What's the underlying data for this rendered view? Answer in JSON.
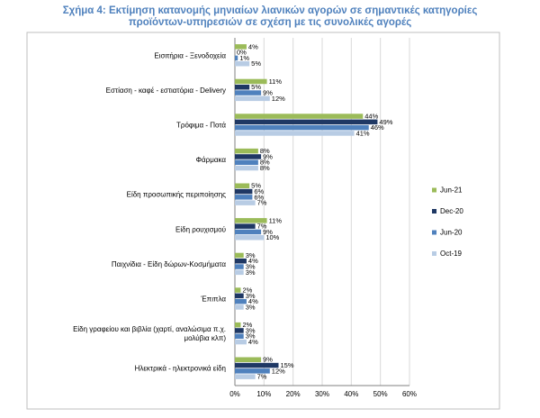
{
  "chart_data": {
    "type": "bar",
    "orientation": "horizontal",
    "title_lines": [
      "Σχήμα 4: Εκτίμηση κατανομής μηνιαίων λιανικών αγορών σε σημαντικές κατηγορίες",
      "προϊόντων-υπηρεσιών σε σχέση με τις συνολικές αγορές"
    ],
    "categories": [
      [
        "Εισιτήρια - Ξενοδοχεία"
      ],
      [
        "Εστίαση - καφέ - εστιατόρια - Delivery"
      ],
      [
        "Τρόφιμα - Ποτά"
      ],
      [
        "Φάρμακα"
      ],
      [
        "Είδη προσωπικής περιποίησης"
      ],
      [
        "Είδη ρουχισμού"
      ],
      [
        "Παιχνίδια - Είδη δώρων-Κοσμήματα"
      ],
      [
        "Έπιπλα"
      ],
      [
        "Είδη γραφείου και βιβλία (χαρτί, αναλώσιμα π.χ.",
        "μολύβια κλπ)"
      ],
      [
        "Ηλεκτρικά - ηλεκτρονικά είδη"
      ]
    ],
    "series": [
      {
        "name": "Jun-21",
        "color": "#9bbb59",
        "values": [
          4,
          11,
          44,
          8,
          5,
          11,
          3,
          2,
          2,
          9
        ]
      },
      {
        "name": "Dec-20",
        "color": "#1f3864",
        "values": [
          0,
          5,
          49,
          9,
          6,
          7,
          4,
          3,
          3,
          15
        ]
      },
      {
        "name": "Jun-20",
        "color": "#4f81bd",
        "values": [
          1,
          9,
          46,
          8,
          6,
          9,
          3,
          4,
          3,
          12
        ]
      },
      {
        "name": "Oct-19",
        "color": "#b8cce4",
        "values": [
          5,
          12,
          41,
          8,
          7,
          10,
          3,
          3,
          4,
          7
        ]
      }
    ],
    "xlim": [
      0,
      60
    ],
    "xticks": [
      0,
      10,
      20,
      30,
      40,
      50,
      60
    ],
    "tick_suffix": "%",
    "value_suffix": "%",
    "grid": true,
    "legend_position": "right"
  }
}
